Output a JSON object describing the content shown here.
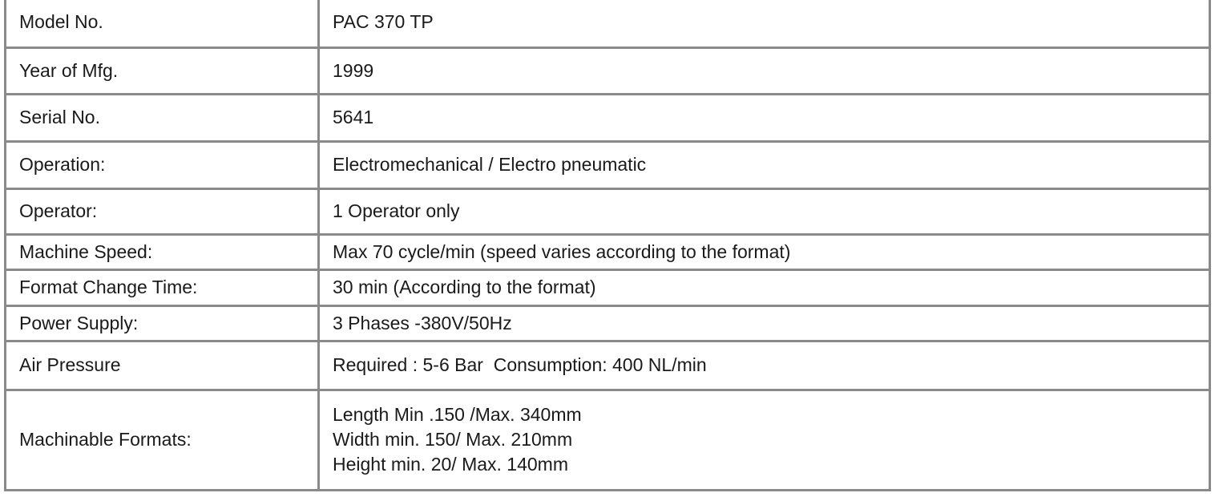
{
  "rows": [
    {
      "label": "Model No.",
      "value": [
        "PAC 370 TP"
      ]
    },
    {
      "label": "Year of Mfg.",
      "value": [
        "1999"
      ]
    },
    {
      "label": "Serial No.",
      "value": [
        "5641"
      ]
    },
    {
      "label": "Operation:",
      "value": [
        "Electromechanical / Electro pneumatic"
      ]
    },
    {
      "label": "Operator:",
      "value": [
        "1 Operator only"
      ]
    },
    {
      "label": "Machine Speed:",
      "value": [
        "Max 70 cycle/min (speed varies according to the format)"
      ]
    },
    {
      "label": "Format Change Time:",
      "value": [
        "30 min (According to the format)"
      ]
    },
    {
      "label": "Power Supply:",
      "value": [
        "3 Phases -380V/50Hz"
      ]
    },
    {
      "label": "Air Pressure",
      "value": [
        "Required : 5-6 Bar  Consumption: 400 NL/min"
      ]
    },
    {
      "label": "Machinable Formats:",
      "value": [
        "Length Min .150 /Max. 340mm",
        "Width min. 150/ Max. 210mm",
        "Height min. 20/ Max. 140mm"
      ]
    }
  ]
}
